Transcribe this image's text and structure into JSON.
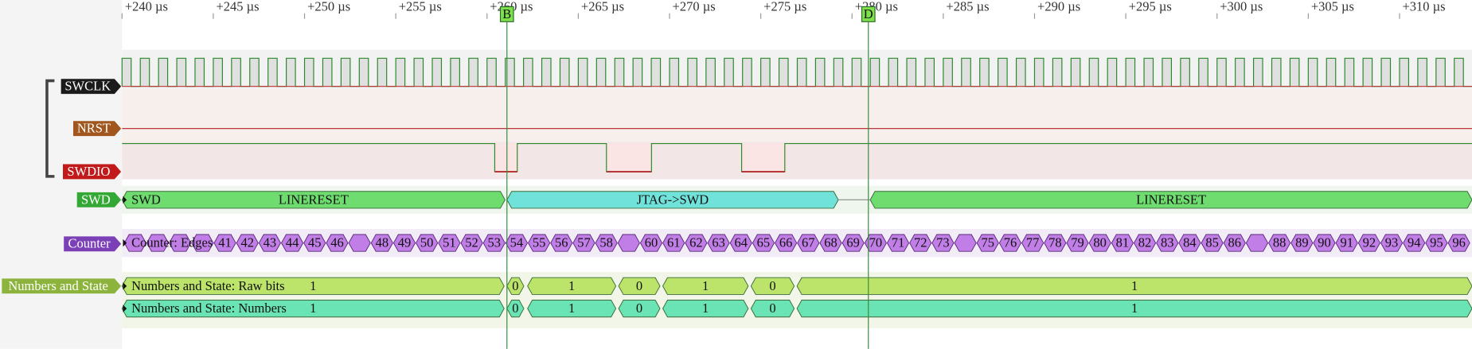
{
  "time_axis": {
    "labels": [
      "+240 µs",
      "+245 µs",
      "+250 µs",
      "+255 µs",
      "+260 µs",
      "+265 µs",
      "+270 µs",
      "+275 µs",
      "+280 µs",
      "+285 µs",
      "+290 µs",
      "+295 µs",
      "+300 µs",
      "+305 µs",
      "+310 µs"
    ]
  },
  "cursors": [
    "B",
    "D"
  ],
  "channels": [
    {
      "label": "SWCLK"
    },
    {
      "label": "NRST"
    },
    {
      "label": "SWDIO"
    }
  ],
  "swd": {
    "label": "SWD",
    "title": "SWD",
    "segments": [
      "LINERESET",
      "JTAG->SWD",
      "LINERESET"
    ]
  },
  "counter": {
    "label": "Counter",
    "title": "Counter: Edges",
    "cells": [
      null,
      null,
      null,
      null,
      "41",
      "42",
      "43",
      "44",
      "45",
      "46",
      null,
      "48",
      "49",
      "50",
      "51",
      "52",
      "53",
      "54",
      "55",
      "56",
      "57",
      "58",
      null,
      "60",
      "61",
      "62",
      "63",
      "64",
      "65",
      "66",
      "67",
      "68",
      "69",
      "70",
      "71",
      "72",
      "73",
      null,
      "75",
      "76",
      "77",
      "78",
      "79",
      "80",
      "81",
      "82",
      "83",
      "84",
      "85",
      "86",
      null,
      "88",
      "89",
      "90",
      "91",
      "92",
      "93",
      "94",
      "95",
      "96"
    ]
  },
  "numbers_and_state": {
    "label": "Numbers and State",
    "rows": [
      {
        "title": "Numbers and State: Raw bits",
        "segments": [
          "1",
          "0",
          "1",
          "0",
          "1",
          "0",
          "1"
        ]
      },
      {
        "title": "Numbers and State: Numbers",
        "segments": [
          "1",
          "0",
          "1",
          "0",
          "1",
          "0",
          "1"
        ]
      }
    ]
  }
}
